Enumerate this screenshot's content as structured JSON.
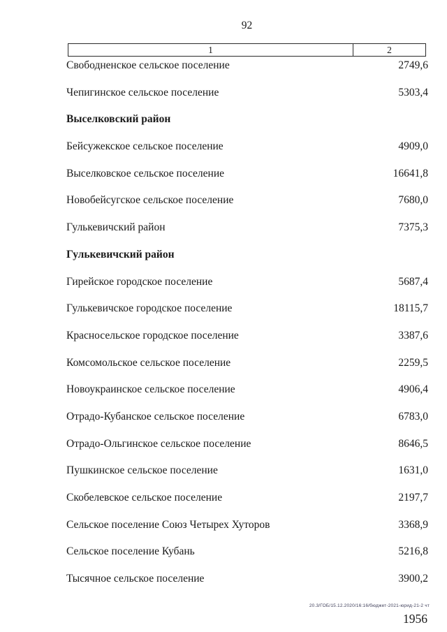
{
  "page": {
    "number": "92",
    "footer_stamp": "20.3/ГОБ/15.12.2020/16:16/бюджет-2021-юрид-21-2 чт",
    "footer_number": "1956"
  },
  "table": {
    "columns": [
      "1",
      "2"
    ],
    "rows": [
      {
        "name": "Свободненское сельское поселение",
        "value": "2749,6",
        "bold": false
      },
      {
        "name": "Чепигинское сельское поселение",
        "value": "5303,4",
        "bold": false
      },
      {
        "name": "Выселковский район",
        "value": "",
        "bold": true
      },
      {
        "name": "Бейсужекское сельское поселение",
        "value": "4909,0",
        "bold": false
      },
      {
        "name": "Выселковское сельское поселение",
        "value": "16641,8",
        "bold": false
      },
      {
        "name": "Новобейсугское сельское поселение",
        "value": "7680,0",
        "bold": false
      },
      {
        "name": "Гулькевичский район",
        "value": "7375,3",
        "bold": false
      },
      {
        "name": "Гулькевичский район",
        "value": "",
        "bold": true
      },
      {
        "name": "Гирейское городское поселение",
        "value": "5687,4",
        "bold": false
      },
      {
        "name": "Гулькевичское городское поселение",
        "value": "18115,7",
        "bold": false
      },
      {
        "name": "Красносельское городское поселение",
        "value": "3387,6",
        "bold": false
      },
      {
        "name": "Комсомольское сельское поселение",
        "value": "2259,5",
        "bold": false
      },
      {
        "name": "Новоукраинское сельское поселение",
        "value": "4906,4",
        "bold": false
      },
      {
        "name": "Отрадо-Кубанское сельское поселение",
        "value": "6783,0",
        "bold": false
      },
      {
        "name": "Отрадо-Ольгинское сельское поселение",
        "value": "8646,5",
        "bold": false
      },
      {
        "name": "Пушкинское сельское поселение",
        "value": "1631,0",
        "bold": false
      },
      {
        "name": "Скобелевское сельское поселение",
        "value": "2197,7",
        "bold": false
      },
      {
        "name": "Сельское поселение Союз Четырех Хуторов",
        "value": "3368,9",
        "bold": false
      },
      {
        "name": "Сельское поселение Кубань",
        "value": "5216,8",
        "bold": false
      },
      {
        "name": "Тысячное сельское поселение",
        "value": "3900,2",
        "bold": false
      }
    ]
  }
}
